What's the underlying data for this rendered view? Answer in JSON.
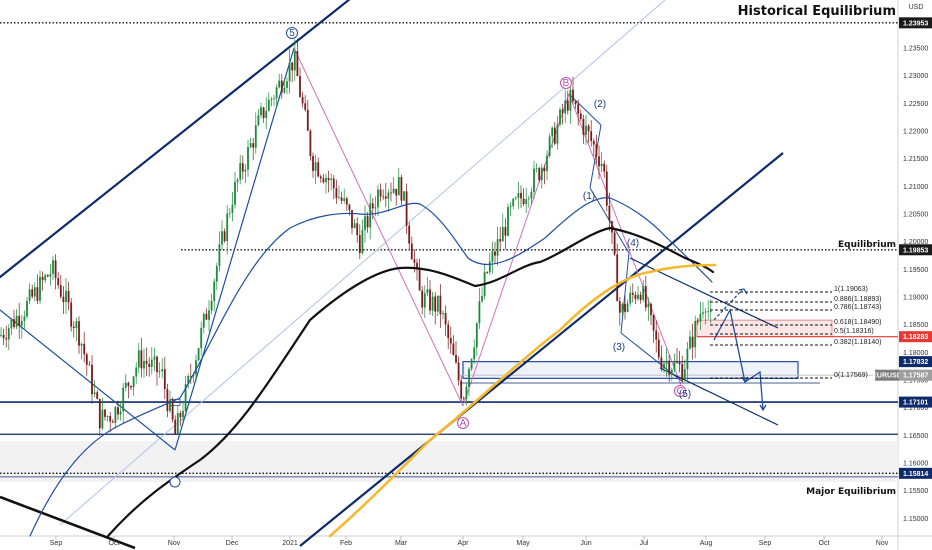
{
  "chart_data": {
    "type": "candlestick",
    "symbol": "EURUSD",
    "currency": "USD",
    "x_ticks": [
      "Sep",
      "Oct",
      "Nov",
      "Dec",
      "2021",
      "Feb",
      "Mar",
      "Apr",
      "May",
      "Jun",
      "Jul",
      "Aug",
      "Sep",
      "Oct",
      "Nov"
    ],
    "y_ticks": [
      "1.23500",
      "1.23000",
      "1.22500",
      "1.22000",
      "1.21500",
      "1.21000",
      "1.20500",
      "1.20000",
      "1.19500",
      "1.19000",
      "1.18500",
      "1.18000",
      "1.17500",
      "1.17000",
      "1.16500",
      "1.16000",
      "1.15500",
      "1.15000"
    ],
    "ylim": [
      1.148,
      1.244
    ],
    "price_tags": [
      {
        "value": "1.23953",
        "color": "#1a1a1a"
      },
      {
        "value": "1.19853",
        "color": "#1a1a1a"
      },
      {
        "value": "1.18283",
        "color": "#e53935"
      },
      {
        "value": "1.17832",
        "color": "#0d2a6b"
      },
      {
        "value": "1.17587",
        "color": "#9e9e9e",
        "label": "EURUSD"
      },
      {
        "value": "1.17101",
        "color": "#0d2a6b"
      },
      {
        "value": "1.15814",
        "color": "#0d2a6b"
      }
    ],
    "levels": [
      {
        "price": 1.23953,
        "label": "Historical Equilibrium",
        "style": "dotted"
      },
      {
        "price": 1.19853,
        "label": "Equilibrium",
        "style": "dotted"
      },
      {
        "price": 1.15814,
        "label": "Major Equilibrium",
        "style": "dotted"
      },
      {
        "price": 1.17101,
        "label": "",
        "style": "solid-navy"
      },
      {
        "price": 1.1652,
        "label": "",
        "style": "solid-navy"
      }
    ],
    "fib_levels": [
      {
        "ratio": "1",
        "price": "1.19063"
      },
      {
        "ratio": "0.886",
        "price": "1.18893"
      },
      {
        "ratio": "0.786",
        "price": "1.18743"
      },
      {
        "ratio": "0.618",
        "price": "1.18490"
      },
      {
        "ratio": "0.5",
        "price": "1.18316"
      },
      {
        "ratio": "0.382",
        "price": "1.18140"
      },
      {
        "ratio": "0",
        "price": "1.17569"
      }
    ],
    "wave_labels": [
      {
        "text": "5",
        "style": "circle-blue"
      },
      {
        "text": "B",
        "style": "circle-pink"
      },
      {
        "text": "A",
        "style": "circle-pink"
      },
      {
        "text": "C",
        "style": "circle-pink"
      },
      {
        "text": "(2)",
        "style": "blue"
      },
      {
        "text": "(1)",
        "style": "blue"
      },
      {
        "text": "(4)",
        "style": "blue"
      },
      {
        "text": "(3)",
        "style": "blue"
      },
      {
        "text": "(5)",
        "style": "blue"
      }
    ],
    "series": [
      {
        "name": "",
        "color": "#000000",
        "type": "moving-average"
      },
      {
        "name": "",
        "color": "#1f4e9e",
        "type": "moving-average"
      },
      {
        "name": "",
        "color": "#f5b82e",
        "type": "moving-average"
      }
    ]
  }
}
